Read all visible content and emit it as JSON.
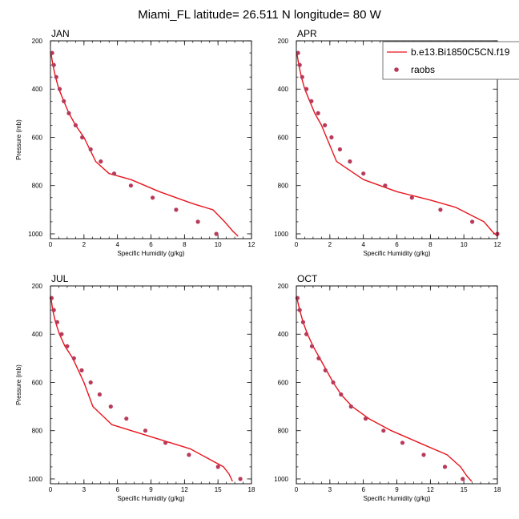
{
  "figure": {
    "title": "Miami_FL  latitude= 26.511 N longitude= 80 W",
    "colors": {
      "model_line": "#e8141c",
      "obs_marker": "#b83a5a",
      "frame": "#000000",
      "legend_frame": "#555555"
    }
  },
  "legend": {
    "series": [
      {
        "name": "b.e13.Bi1850C5CN.f19",
        "kind": "line"
      },
      {
        "name": "raobs",
        "kind": "marker"
      }
    ]
  },
  "chart_data": [
    {
      "type": "line",
      "title": "JAN",
      "xlabel": "Specific Humidity (g/kg)",
      "ylabel": "Pressure (mb)",
      "xlim": [
        0,
        12
      ],
      "ylim": [
        200,
        1020
      ],
      "y_inverted": true,
      "xticks": [
        0,
        2,
        4,
        6,
        8,
        10,
        12
      ],
      "yticks": [
        200,
        400,
        600,
        800,
        1000
      ],
      "series": [
        {
          "name": "b.e13.Bi1850C5CN.f19",
          "kind": "line",
          "x": [
            0.03,
            0.15,
            0.3,
            0.5,
            0.8,
            1.1,
            1.5,
            2.0,
            2.7,
            3.5,
            4.8,
            6.5,
            8.5,
            9.7,
            10.4,
            10.9,
            11.2
          ],
          "y": [
            250,
            300,
            350,
            400,
            450,
            500,
            550,
            600,
            700,
            750,
            775,
            825,
            875,
            900,
            950,
            990,
            1010
          ]
        },
        {
          "name": "raobs",
          "kind": "marker",
          "x": [
            0.1,
            0.2,
            0.35,
            0.55,
            0.8,
            1.1,
            1.5,
            1.9,
            2.4,
            3.0,
            3.8,
            4.8,
            6.1,
            7.5,
            8.8,
            9.9
          ],
          "y": [
            250,
            300,
            350,
            400,
            450,
            500,
            550,
            600,
            650,
            700,
            750,
            800,
            850,
            900,
            950,
            1000
          ]
        }
      ]
    },
    {
      "type": "line",
      "title": "APR",
      "xlabel": "Specific Humidity (g/kg)",
      "ylabel": "",
      "xlim": [
        0,
        12
      ],
      "ylim": [
        200,
        1020
      ],
      "y_inverted": true,
      "xticks": [
        0,
        2,
        4,
        6,
        8,
        10,
        12
      ],
      "yticks": [
        200,
        400,
        600,
        800,
        1000
      ],
      "series": [
        {
          "name": "b.e13.Bi1850C5CN.f19",
          "kind": "line",
          "x": [
            0.03,
            0.15,
            0.3,
            0.5,
            0.8,
            1.1,
            1.5,
            2.4,
            4.0,
            6.0,
            8.0,
            9.5,
            10.5,
            11.2,
            11.7,
            12.0
          ],
          "y": [
            250,
            300,
            350,
            400,
            450,
            500,
            550,
            700,
            775,
            825,
            860,
            890,
            925,
            950,
            990,
            1010
          ]
        },
        {
          "name": "raobs",
          "kind": "marker",
          "x": [
            0.1,
            0.2,
            0.35,
            0.6,
            0.9,
            1.3,
            1.7,
            2.1,
            2.6,
            3.2,
            4.0,
            5.3,
            6.9,
            8.6,
            10.5,
            12.0
          ],
          "y": [
            250,
            300,
            350,
            400,
            450,
            500,
            550,
            600,
            650,
            700,
            750,
            800,
            850,
            900,
            950,
            1000
          ]
        }
      ]
    },
    {
      "type": "line",
      "title": "JUL",
      "xlabel": "Specific Humidity (g/kg)",
      "ylabel": "Pressure (mb)",
      "xlim": [
        0,
        18
      ],
      "ylim": [
        200,
        1020
      ],
      "y_inverted": true,
      "xticks": [
        0,
        3,
        6,
        9,
        12,
        15,
        18
      ],
      "yticks": [
        200,
        400,
        600,
        800,
        1000
      ],
      "series": [
        {
          "name": "b.e13.Bi1850C5CN.f19",
          "kind": "line",
          "x": [
            0.05,
            0.2,
            0.45,
            0.8,
            1.3,
            2.0,
            3.0,
            3.8,
            5.5,
            9.0,
            12.5,
            14.5,
            15.5,
            16.0,
            16.3
          ],
          "y": [
            250,
            300,
            350,
            400,
            450,
            500,
            600,
            700,
            775,
            825,
            875,
            925,
            950,
            980,
            1010
          ]
        },
        {
          "name": "raobs",
          "kind": "marker",
          "x": [
            0.1,
            0.3,
            0.6,
            1.0,
            1.5,
            2.1,
            2.8,
            3.6,
            4.4,
            5.4,
            6.8,
            8.5,
            10.3,
            12.4,
            15.0,
            17.0
          ],
          "y": [
            250,
            300,
            350,
            400,
            450,
            500,
            550,
            600,
            650,
            700,
            750,
            800,
            850,
            900,
            950,
            1000
          ]
        }
      ]
    },
    {
      "type": "line",
      "title": "OCT",
      "xlabel": "Specific Humidity (g/kg)",
      "ylabel": "",
      "xlim": [
        0,
        18
      ],
      "ylim": [
        200,
        1020
      ],
      "y_inverted": true,
      "xticks": [
        0,
        3,
        6,
        9,
        12,
        15,
        18
      ],
      "yticks": [
        200,
        400,
        600,
        800,
        1000
      ],
      "series": [
        {
          "name": "b.e13.Bi1850C5CN.f19",
          "kind": "line",
          "x": [
            0.05,
            0.3,
            0.6,
            1.0,
            1.5,
            2.1,
            2.7,
            3.3,
            4.0,
            5.0,
            6.5,
            8.5,
            11.0,
            13.5,
            14.7,
            15.3,
            15.7
          ],
          "y": [
            250,
            300,
            350,
            400,
            450,
            500,
            550,
            600,
            650,
            700,
            750,
            800,
            850,
            900,
            950,
            990,
            1010
          ]
        },
        {
          "name": "raobs",
          "kind": "marker",
          "x": [
            0.1,
            0.3,
            0.6,
            0.9,
            1.4,
            2.0,
            2.6,
            3.3,
            4.0,
            4.9,
            6.2,
            7.8,
            9.5,
            11.4,
            13.3,
            14.9
          ],
          "y": [
            250,
            300,
            350,
            400,
            450,
            500,
            550,
            600,
            650,
            700,
            750,
            800,
            850,
            900,
            950,
            1000
          ]
        }
      ]
    }
  ]
}
